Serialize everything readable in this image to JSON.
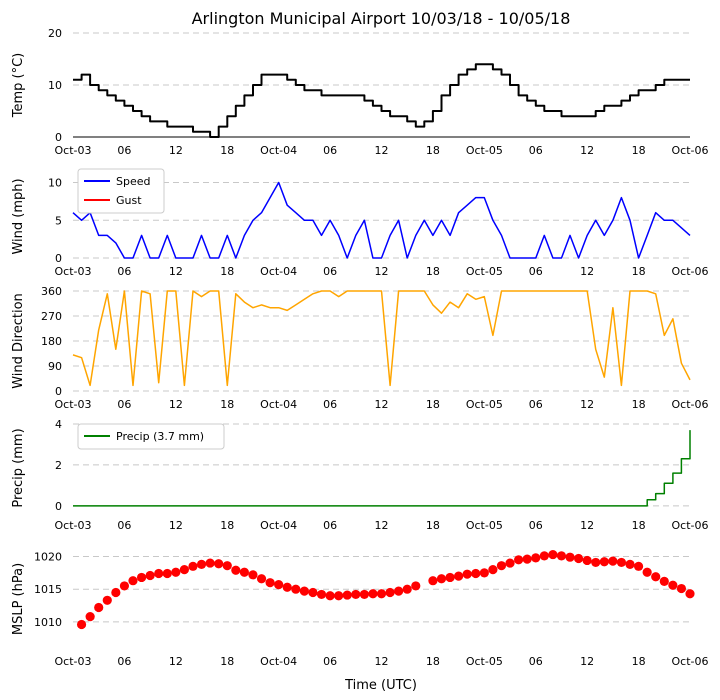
{
  "title": "Arlington Municipal Airport 10/03/18 - 10/05/18",
  "xlabel": "Time (UTC)",
  "x_tick_labels": [
    "Oct-03",
    "06",
    "12",
    "18",
    "Oct-04",
    "06",
    "12",
    "18",
    "Oct-05",
    "06",
    "12",
    "18",
    "Oct-06"
  ],
  "x_tick_hours": [
    0,
    6,
    12,
    18,
    24,
    30,
    36,
    42,
    48,
    54,
    60,
    66,
    72
  ],
  "chart_data": [
    {
      "type": "line",
      "ylabel": "Temp ($^\\circ$C)",
      "ylim": [
        0,
        20
      ],
      "yticks": [
        0,
        10,
        20
      ],
      "grid": "horizontal dashed",
      "series": [
        {
          "color": "#000000",
          "x": [
            0,
            1,
            2,
            3,
            4,
            5,
            6,
            7,
            8,
            9,
            10,
            11,
            12,
            13,
            14,
            15,
            16,
            17,
            18,
            19,
            20,
            21,
            22,
            23,
            24,
            25,
            26,
            27,
            28,
            29,
            30,
            31,
            32,
            33,
            34,
            35,
            36,
            37,
            38,
            39,
            40,
            41,
            42,
            43,
            44,
            45,
            46,
            47,
            48,
            49,
            50,
            51,
            52,
            53,
            54,
            55,
            56,
            57,
            58,
            59,
            60,
            61,
            62,
            63,
            64,
            65,
            66,
            67,
            68,
            69,
            70,
            71,
            72
          ],
          "y": [
            11,
            12,
            10,
            9,
            8,
            7,
            6,
            5,
            4,
            3,
            3,
            2,
            2,
            2,
            1,
            1,
            0,
            2,
            4,
            6,
            8,
            10,
            12,
            12,
            12,
            11,
            10,
            9,
            9,
            8,
            8,
            8,
            8,
            8,
            7,
            6,
            5,
            4,
            4,
            3,
            2,
            3,
            5,
            8,
            10,
            12,
            13,
            14,
            14,
            13,
            12,
            10,
            8,
            7,
            6,
            5,
            5,
            4,
            4,
            4,
            4,
            5,
            6,
            6,
            7,
            8,
            9,
            9,
            10,
            11,
            11,
            11,
            11
          ]
        }
      ]
    },
    {
      "type": "line",
      "ylabel": "Wind (mph)",
      "ylim": [
        0,
        11
      ],
      "yticks": [
        0,
        5,
        10
      ],
      "grid": "horizontal dashed",
      "legend": "top-left",
      "series": [
        {
          "name": "Speed",
          "color": "#0000ff",
          "x": [
            0,
            1,
            2,
            3,
            4,
            5,
            6,
            7,
            8,
            9,
            10,
            11,
            12,
            13,
            14,
            15,
            16,
            17,
            18,
            19,
            20,
            21,
            22,
            23,
            24,
            25,
            26,
            27,
            28,
            29,
            30,
            31,
            32,
            33,
            34,
            35,
            36,
            37,
            38,
            39,
            40,
            41,
            42,
            43,
            44,
            45,
            46,
            47,
            48,
            49,
            50,
            51,
            52,
            53,
            54,
            55,
            56,
            57,
            58,
            59,
            60,
            61,
            62,
            63,
            64,
            65,
            66,
            67,
            68,
            69,
            70,
            71,
            72
          ],
          "y": [
            6,
            5,
            6,
            3,
            3,
            2,
            0,
            0,
            3,
            0,
            0,
            3,
            0,
            0,
            0,
            3,
            0,
            0,
            3,
            0,
            3,
            5,
            6,
            8,
            10,
            7,
            6,
            5,
            5,
            3,
            5,
            3,
            0,
            3,
            5,
            0,
            0,
            3,
            5,
            0,
            3,
            5,
            3,
            5,
            3,
            6,
            7,
            8,
            8,
            5,
            3,
            0,
            0,
            0,
            0,
            3,
            0,
            0,
            3,
            0,
            3,
            5,
            3,
            5,
            8,
            5,
            0,
            3,
            6,
            5,
            5,
            4,
            3
          ]
        },
        {
          "name": "Gust",
          "color": "#ff0000",
          "x": [],
          "y": []
        }
      ]
    },
    {
      "type": "line",
      "ylabel": "Wind Direction",
      "ylim": [
        0,
        360
      ],
      "yticks": [
        0,
        90,
        180,
        270,
        360
      ],
      "grid": "horizontal dashed",
      "series": [
        {
          "color": "#ffa500",
          "x": [
            0,
            1,
            2,
            3,
            4,
            5,
            6,
            7,
            8,
            9,
            10,
            11,
            12,
            13,
            14,
            15,
            16,
            17,
            18,
            19,
            20,
            21,
            22,
            23,
            24,
            25,
            26,
            27,
            28,
            29,
            30,
            31,
            32,
            33,
            34,
            35,
            36,
            37,
            38,
            39,
            40,
            41,
            42,
            43,
            44,
            45,
            46,
            47,
            48,
            49,
            50,
            51,
            52,
            53,
            54,
            55,
            56,
            57,
            58,
            59,
            60,
            61,
            62,
            63,
            64,
            65,
            66,
            67,
            68,
            69,
            70,
            71,
            72
          ],
          "y": [
            130,
            120,
            20,
            220,
            350,
            150,
            360,
            20,
            360,
            350,
            30,
            360,
            360,
            20,
            360,
            340,
            360,
            360,
            20,
            350,
            320,
            300,
            310,
            300,
            300,
            290,
            310,
            330,
            350,
            360,
            360,
            340,
            360,
            360,
            360,
            360,
            360,
            20,
            360,
            360,
            360,
            360,
            310,
            280,
            320,
            300,
            350,
            330,
            340,
            200,
            360,
            360,
            360,
            360,
            360,
            360,
            360,
            360,
            360,
            360,
            360,
            150,
            50,
            300,
            20,
            360,
            360,
            360,
            350,
            200,
            260,
            100,
            40
          ]
        }
      ]
    },
    {
      "type": "line",
      "ylabel": "Precip (mm)",
      "ylim": [
        -0.3,
        4
      ],
      "yticks": [
        0,
        2,
        4
      ],
      "grid": "horizontal dashed",
      "legend": "top-left",
      "series": [
        {
          "name": "Precip (3.7 mm)",
          "color": "#008000",
          "x": [
            0,
            10,
            20,
            30,
            40,
            50,
            60,
            66,
            67,
            68,
            69,
            70,
            71,
            72
          ],
          "y": [
            0,
            0,
            0,
            0,
            0,
            0,
            0,
            0,
            0.3,
            0.6,
            1.1,
            1.6,
            2.3,
            3.7
          ]
        }
      ]
    },
    {
      "type": "scatter",
      "ylabel": "MSLP (hPa)",
      "ylim": [
        1006,
        1021
      ],
      "yticks": [
        1010,
        1015,
        1020
      ],
      "grid": "horizontal dashed",
      "series": [
        {
          "color": "#ff0000",
          "x": [
            1,
            2,
            3,
            4,
            5,
            6,
            7,
            8,
            9,
            10,
            11,
            12,
            13,
            14,
            15,
            16,
            17,
            18,
            19,
            20,
            21,
            22,
            23,
            24,
            25,
            26,
            27,
            28,
            29,
            30,
            31,
            32,
            33,
            34,
            35,
            36,
            37,
            38,
            39,
            40,
            42,
            43,
            44,
            45,
            46,
            47,
            48,
            49,
            50,
            51,
            52,
            53,
            54,
            55,
            56,
            57,
            58,
            59,
            60,
            61,
            62,
            63,
            64,
            65,
            66,
            67,
            68,
            69,
            70,
            71,
            72
          ],
          "y": [
            1009.6,
            1010.8,
            1012.2,
            1013.3,
            1014.5,
            1015.5,
            1016.3,
            1016.8,
            1017.1,
            1017.4,
            1017.4,
            1017.6,
            1018.0,
            1018.5,
            1018.8,
            1019.0,
            1018.9,
            1018.6,
            1017.9,
            1017.6,
            1017.2,
            1016.6,
            1016.0,
            1015.7,
            1015.3,
            1015.0,
            1014.7,
            1014.5,
            1014.2,
            1014.0,
            1014.0,
            1014.1,
            1014.2,
            1014.2,
            1014.3,
            1014.3,
            1014.5,
            1014.7,
            1015.0,
            1015.5,
            1016.3,
            1016.6,
            1016.8,
            1017.0,
            1017.3,
            1017.4,
            1017.5,
            1018.0,
            1018.6,
            1019.0,
            1019.5,
            1019.6,
            1019.8,
            1020.1,
            1020.3,
            1020.1,
            1019.9,
            1019.7,
            1019.4,
            1019.1,
            1019.2,
            1019.3,
            1019.1,
            1018.8,
            1018.5,
            1017.6,
            1016.9,
            1016.2,
            1015.6,
            1015.1,
            1014.3
          ]
        }
      ]
    }
  ]
}
